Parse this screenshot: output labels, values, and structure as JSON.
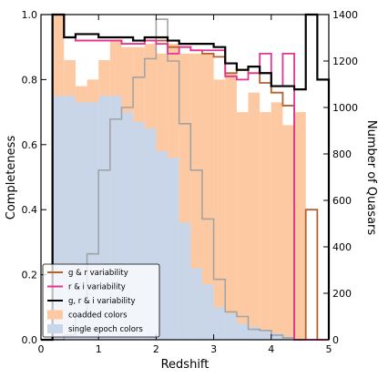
{
  "chart_data": {
    "type": "step-histogram",
    "xlabel": "Redshift",
    "ylabel_left": "Completeness",
    "ylabel_right": "Number of Quasars",
    "xlim": [
      0,
      5
    ],
    "ylim_left": [
      0,
      1.0
    ],
    "ylim_right": [
      0,
      1400
    ],
    "x_ticks": [
      "0",
      "1",
      "2",
      "3",
      "4",
      "5"
    ],
    "y_ticks_left": [
      "0.0",
      "0.2",
      "0.4",
      "0.6",
      "0.8",
      "1.0"
    ],
    "y_ticks_right": [
      "0",
      "200",
      "400",
      "600",
      "800",
      "1000",
      "1200",
      "1400"
    ],
    "grid": false,
    "legend_position": "lower-left",
    "bin_edges": [
      0.0,
      0.2,
      0.4,
      0.6,
      0.8,
      1.0,
      1.2,
      1.4,
      1.6,
      1.8,
      2.0,
      2.2,
      2.4,
      2.6,
      2.8,
      3.0,
      3.2,
      3.4,
      3.6,
      3.8,
      4.0,
      4.2,
      4.4,
      4.6,
      4.8,
      5.0
    ],
    "series": [
      {
        "name": "coadded colors",
        "kind": "filled",
        "axis": "left",
        "color": "#fdc9a2",
        "values": [
          0,
          1.0,
          0.86,
          0.78,
          0.8,
          0.86,
          0.92,
          0.9,
          0.9,
          0.91,
          0.88,
          0.91,
          0.88,
          0.88,
          0.88,
          0.8,
          0.82,
          0.7,
          0.76,
          0.7,
          0.73,
          0.66,
          0.7,
          0,
          0
        ]
      },
      {
        "name": "single epoch colors",
        "kind": "filled",
        "axis": "left",
        "color": "#c9d6ea",
        "values": [
          0,
          0.75,
          0.75,
          0.73,
          0.73,
          0.75,
          0.75,
          0.7,
          0.67,
          0.65,
          0.58,
          0.56,
          0.36,
          0.22,
          0.17,
          0.1,
          0.08,
          0.05,
          0.04,
          0.03,
          0.02,
          0.01,
          0.0,
          0,
          0
        ]
      },
      {
        "name": "Number of Quasars",
        "kind": "step",
        "axis": "right",
        "color": "#a3a3a3",
        "values": [
          0,
          0,
          20,
          100,
          370,
          730,
          950,
          1000,
          1130,
          1210,
          1380,
          1200,
          930,
          730,
          520,
          260,
          120,
          100,
          45,
          40,
          20,
          8,
          0,
          0,
          0
        ]
      },
      {
        "name": "g & r variability",
        "kind": "step",
        "axis": "left",
        "color": "#b5602d",
        "values": [
          0,
          1.0,
          0.93,
          0.92,
          0.92,
          0.92,
          0.92,
          0.91,
          0.91,
          0.92,
          0.92,
          0.9,
          0.9,
          0.89,
          0.88,
          0.87,
          0.82,
          0.83,
          0.82,
          0.79,
          0.76,
          0.72,
          0.0,
          0.4,
          0
        ]
      },
      {
        "name": "r & i variability",
        "kind": "step",
        "axis": "left",
        "color": "#e33591",
        "values": [
          0,
          1.0,
          0.93,
          0.92,
          0.92,
          0.92,
          0.92,
          0.91,
          0.91,
          0.92,
          0.91,
          0.88,
          0.9,
          0.89,
          0.89,
          0.89,
          0.81,
          0.8,
          0.82,
          0.88,
          0.78,
          0.88,
          0,
          0,
          0
        ]
      },
      {
        "name": "g, r & i variability",
        "kind": "step",
        "axis": "left",
        "color": "#000000",
        "values": [
          0,
          1.0,
          0.93,
          0.94,
          0.94,
          0.93,
          0.93,
          0.93,
          0.92,
          0.93,
          0.93,
          0.92,
          0.91,
          0.91,
          0.91,
          0.9,
          0.85,
          0.83,
          0.84,
          0.82,
          0.78,
          0.78,
          0.77,
          1.0,
          0.8
        ]
      }
    ],
    "legend": [
      {
        "label": "g & r variability",
        "symbol": "line",
        "color": "#b5602d"
      },
      {
        "label": "r & i variability",
        "symbol": "line",
        "color": "#e33591"
      },
      {
        "label": "g, r & i variability",
        "symbol": "line",
        "color": "#000000"
      },
      {
        "label": "coadded colors",
        "symbol": "patch",
        "color": "#fdc9a2"
      },
      {
        "label": "single epoch colors",
        "symbol": "patch",
        "color": "#c9d6ea"
      }
    ]
  }
}
